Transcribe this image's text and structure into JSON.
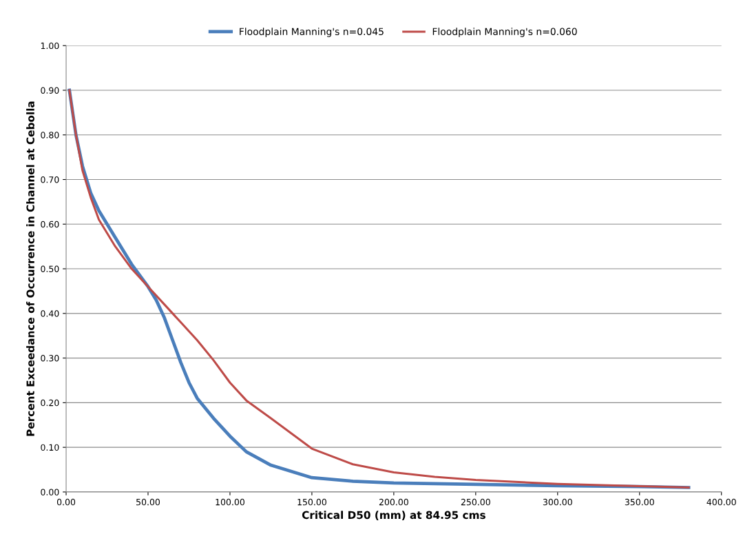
{
  "chart_data": {
    "type": "line",
    "xlabel": "Critical D50 (mm) at 84.95 cms",
    "ylabel": "Percent Exceedance of Occurrence in Channel at Cebolla",
    "xlim": [
      0,
      400
    ],
    "ylim": [
      0,
      1
    ],
    "xticks": [
      {
        "value": 0,
        "label": "0.00"
      },
      {
        "value": 50,
        "label": "50.00"
      },
      {
        "value": 100,
        "label": "100.00"
      },
      {
        "value": 150,
        "label": "150.00"
      },
      {
        "value": 200,
        "label": "200.00"
      },
      {
        "value": 250,
        "label": "250.00"
      },
      {
        "value": 300,
        "label": "300.00"
      },
      {
        "value": 350,
        "label": "350.00"
      },
      {
        "value": 400,
        "label": "400.00"
      }
    ],
    "yticks": [
      {
        "value": 0,
        "label": "0.00"
      },
      {
        "value": 0.1,
        "label": "0.10"
      },
      {
        "value": 0.2,
        "label": "0.20"
      },
      {
        "value": 0.3,
        "label": "0.30"
      },
      {
        "value": 0.4,
        "label": "0.40"
      },
      {
        "value": 0.5,
        "label": "0.50"
      },
      {
        "value": 0.6,
        "label": "0.60"
      },
      {
        "value": 0.7,
        "label": "0.70"
      },
      {
        "value": 0.8,
        "label": "0.80"
      },
      {
        "value": 0.9,
        "label": "0.90"
      },
      {
        "value": 1,
        "label": "1.00"
      }
    ],
    "grid": "y",
    "legend": "top",
    "marker": "none",
    "line_style": "solid",
    "series": [
      {
        "name": "Floodplain Manning's n=0.045",
        "color": "#4a7ebb",
        "x": [
          2,
          6,
          10,
          15,
          20,
          30,
          40,
          50,
          55,
          60,
          65,
          70,
          75,
          80,
          90,
          100,
          110,
          125,
          150,
          175,
          200,
          250,
          300,
          350,
          380
        ],
        "values": [
          0.9,
          0.8,
          0.73,
          0.67,
          0.63,
          0.57,
          0.51,
          0.46,
          0.43,
          0.39,
          0.34,
          0.29,
          0.245,
          0.21,
          0.165,
          0.125,
          0.09,
          0.06,
          0.032,
          0.024,
          0.02,
          0.017,
          0.014,
          0.012,
          0.01
        ]
      },
      {
        "name": "Floodplain Manning's n=0.060",
        "color": "#be4b48",
        "x": [
          2,
          6,
          10,
          15,
          20,
          30,
          40,
          50,
          60,
          70,
          80,
          90,
          100,
          110,
          125,
          150,
          175,
          200,
          225,
          250,
          300,
          350,
          380
        ],
        "values": [
          0.9,
          0.8,
          0.72,
          0.66,
          0.61,
          0.55,
          0.5,
          0.46,
          0.42,
          0.38,
          0.34,
          0.295,
          0.245,
          0.205,
          0.165,
          0.097,
          0.062,
          0.044,
          0.034,
          0.027,
          0.018,
          0.013,
          0.01
        ]
      }
    ]
  }
}
